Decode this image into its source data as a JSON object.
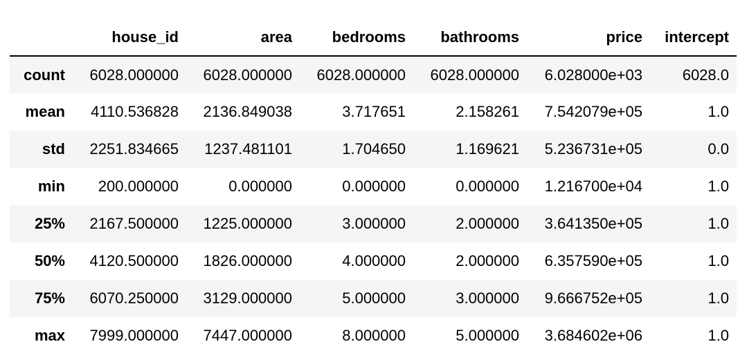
{
  "table": {
    "index_header": "",
    "columns": [
      "house_id",
      "area",
      "bedrooms",
      "bathrooms",
      "price",
      "intercept"
    ],
    "rows": [
      {
        "label": "count",
        "values": [
          "6028.000000",
          "6028.000000",
          "6028.000000",
          "6028.000000",
          "6.028000e+03",
          "6028.0"
        ]
      },
      {
        "label": "mean",
        "values": [
          "4110.536828",
          "2136.849038",
          "3.717651",
          "2.158261",
          "7.542079e+05",
          "1.0"
        ]
      },
      {
        "label": "std",
        "values": [
          "2251.834665",
          "1237.481101",
          "1.704650",
          "1.169621",
          "5.236731e+05",
          "0.0"
        ]
      },
      {
        "label": "min",
        "values": [
          "200.000000",
          "0.000000",
          "0.000000",
          "0.000000",
          "1.216700e+04",
          "1.0"
        ]
      },
      {
        "label": "25%",
        "values": [
          "2167.500000",
          "1225.000000",
          "3.000000",
          "2.000000",
          "3.641350e+05",
          "1.0"
        ]
      },
      {
        "label": "50%",
        "values": [
          "4120.500000",
          "1826.000000",
          "4.000000",
          "2.000000",
          "6.357590e+05",
          "1.0"
        ]
      },
      {
        "label": "75%",
        "values": [
          "6070.250000",
          "3129.000000",
          "5.000000",
          "3.000000",
          "9.666752e+05",
          "1.0"
        ]
      },
      {
        "label": "max",
        "values": [
          "7999.000000",
          "7447.000000",
          "8.000000",
          "5.000000",
          "3.684602e+06",
          "1.0"
        ]
      }
    ]
  }
}
